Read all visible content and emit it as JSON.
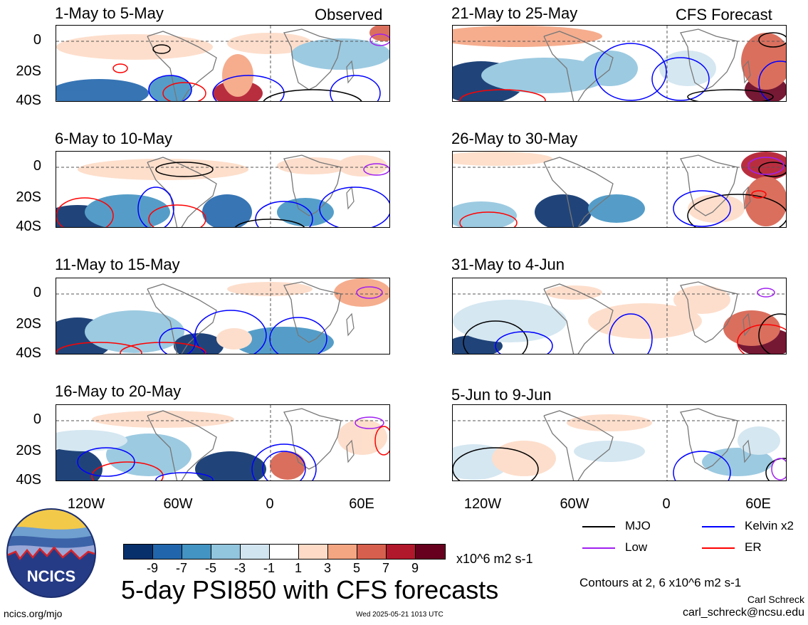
{
  "panels": {
    "p1": {
      "title": "1-May to 5-May",
      "tag": "Observed"
    },
    "p2": {
      "title": "6-May to 10-May",
      "tag": ""
    },
    "p3": {
      "title": "11-May to 15-May",
      "tag": ""
    },
    "p4": {
      "title": "16-May to 20-May",
      "tag": ""
    },
    "p5": {
      "title": "21-May to 25-May",
      "tag": "CFS Forecast"
    },
    "p6": {
      "title": "26-May to 30-May",
      "tag": ""
    },
    "p7": {
      "title": "31-May to 4-Jun",
      "tag": ""
    },
    "p8": {
      "title": "5-Jun to 9-Jun",
      "tag": ""
    }
  },
  "axes": {
    "y_labels": [
      "0",
      "20S",
      "40S"
    ],
    "x_labels": [
      "120W",
      "60W",
      "0",
      "60E"
    ]
  },
  "legend": {
    "mjo": {
      "label": "MJO",
      "color": "#000000"
    },
    "kelvin": {
      "label": "Kelvin x2",
      "color": "#0000ff"
    },
    "low": {
      "label": "Low",
      "color": "#a020f0"
    },
    "er": {
      "label": "ER",
      "color": "#ff0000"
    }
  },
  "colorbar": {
    "colors": [
      "#08306b",
      "#2166ac",
      "#4393c3",
      "#92c5de",
      "#d1e5f0",
      "#ffffff",
      "#fddbc7",
      "#f4a582",
      "#d6604d",
      "#b2182b",
      "#67001f"
    ],
    "tick_labels": [
      "-9",
      "-7",
      "-5",
      "-3",
      "-1",
      "1",
      "3",
      "5",
      "7",
      "9"
    ],
    "units": "x10^6 m2 s-1"
  },
  "footer": {
    "main_title": "5-day PSI850 with CFS forecasts",
    "contours_note": "Contours at 2, 6 x10^6 m2 s-1",
    "author": "Carl Schreck",
    "email": "carl_schreck@ncsu.edu",
    "site": "ncics.org/mjo",
    "timestamp": "Wed 2025-05-21 1013 UTC",
    "logo_text": "NCICS"
  }
}
